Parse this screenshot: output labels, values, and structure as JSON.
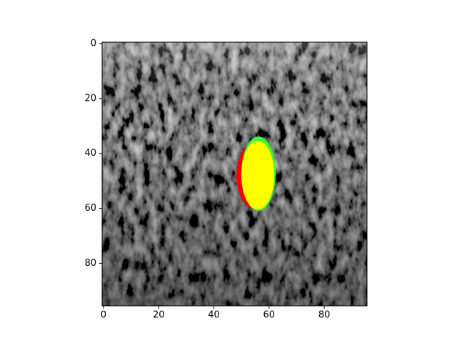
{
  "chart_data": {
    "type": "image",
    "xlim": [
      -0.5,
      95.5
    ],
    "ylim": [
      95.5,
      -0.5
    ],
    "xticks": [
      0,
      20,
      40,
      60,
      80
    ],
    "yticks": [
      0,
      20,
      40,
      60,
      80
    ]
  }
}
